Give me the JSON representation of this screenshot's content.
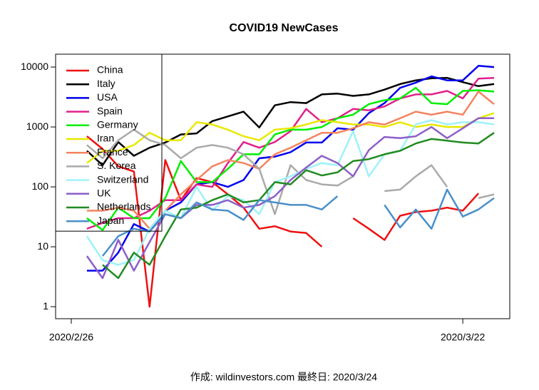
{
  "chart_data": {
    "type": "line",
    "title": "COVID19 NewCases",
    "footer": "作成: wildinvestors.com 最終日: 2020/3/24",
    "log_scale": true,
    "legend": "top-left",
    "xlim": [
      "2020/2/25",
      "2020/3/25"
    ],
    "xticks": [
      "2020/2/26",
      "2020/3/22"
    ],
    "ylim": [
      0.63,
      16400
    ],
    "yticks": [
      1,
      10,
      100,
      1000,
      10000
    ],
    "x": [
      "2020/2/27",
      "2020/2/28",
      "2020/2/29",
      "2020/3/1",
      "2020/3/2",
      "2020/3/3",
      "2020/3/4",
      "2020/3/5",
      "2020/3/6",
      "2020/3/7",
      "2020/3/8",
      "2020/3/9",
      "2020/3/10",
      "2020/3/11",
      "2020/3/12",
      "2020/3/13",
      "2020/3/14",
      "2020/3/15",
      "2020/3/16",
      "2020/3/17",
      "2020/3/18",
      "2020/3/19",
      "2020/3/20",
      "2020/3/21",
      "2020/3/22",
      "2020/3/23",
      "2020/3/24"
    ],
    "series": [
      {
        "name": "China",
        "color": "#ee1111",
        "values": [
          700,
          430,
          220,
          180,
          1,
          280,
          60,
          140,
          120,
          75,
          45,
          20,
          22,
          18,
          17,
          10,
          null,
          30,
          20,
          13,
          33,
          38,
          40,
          45,
          40,
          78,
          null
        ]
      },
      {
        "name": "Italy",
        "color": "#000000",
        "values": [
          400,
          230,
          560,
          330,
          450,
          550,
          750,
          780,
          1250,
          1500,
          1800,
          980,
          2300,
          2600,
          2500,
          3500,
          3600,
          3300,
          3500,
          4200,
          5200,
          6000,
          6500,
          6600,
          5600,
          4800,
          5200
        ]
      },
      {
        "name": "USA",
        "color": "#0000ee",
        "values": [
          4,
          4,
          8,
          24,
          18,
          40,
          55,
          110,
          120,
          100,
          130,
          300,
          320,
          380,
          550,
          550,
          950,
          900,
          1700,
          2500,
          4500,
          5500,
          7000,
          6000,
          6000,
          10500,
          10000
        ]
      },
      {
        "name": "Spain",
        "color": "#e0208c",
        "values": [
          20,
          25,
          30,
          30,
          40,
          60,
          60,
          110,
          100,
          250,
          560,
          450,
          560,
          850,
          2000,
          1200,
          1400,
          2000,
          1900,
          2200,
          3000,
          3500,
          3500,
          4000,
          3000,
          6400,
          6600
        ]
      },
      {
        "name": "Germany",
        "color": "#00ee00",
        "values": [
          30,
          19,
          45,
          30,
          30,
          65,
          270,
          120,
          120,
          200,
          350,
          350,
          750,
          900,
          900,
          1000,
          1400,
          1600,
          2400,
          2800,
          3000,
          4500,
          2500,
          2400,
          4000,
          4100,
          3900
        ]
      },
      {
        "name": "Iran",
        "color": "#e8e800",
        "values": [
          250,
          400,
          400,
          500,
          800,
          600,
          600,
          1200,
          1100,
          900,
          700,
          600,
          900,
          950,
          1100,
          1300,
          1200,
          1100,
          1100,
          1000,
          1200,
          1000,
          1100,
          1000,
          1000,
          1400,
          1700
        ]
      },
      {
        "name": "France",
        "color": "#f4845f",
        "values": [
          40,
          40,
          45,
          40,
          20,
          40,
          75,
          130,
          220,
          280,
          250,
          200,
          350,
          450,
          600,
          800,
          800,
          950,
          1200,
          1100,
          1400,
          1800,
          1600,
          1800,
          1600,
          3900,
          2400
        ]
      },
      {
        "name": "S. Korea",
        "color": "#aaaaaa",
        "values": [
          500,
          300,
          600,
          900,
          600,
          500,
          300,
          450,
          500,
          450,
          350,
          200,
          35,
          230,
          130,
          110,
          105,
          150,
          null,
          85,
          90,
          150,
          230,
          100,
          null,
          65,
          75
        ]
      },
      {
        "name": "Switzerland",
        "color": "#9ef2f8",
        "values": [
          15,
          6,
          5,
          6,
          20,
          40,
          30,
          100,
          40,
          70,
          60,
          35,
          120,
          150,
          200,
          250,
          230,
          850,
          150,
          350,
          400,
          1100,
          1300,
          1100,
          1200,
          1200,
          1100
        ]
      },
      {
        "name": "UK",
        "color": "#8e5ec9",
        "values": [
          7,
          3,
          13,
          4,
          12,
          35,
          30,
          50,
          50,
          60,
          45,
          50,
          70,
          130,
          210,
          330,
          250,
          150,
          410,
          680,
          650,
          700,
          1000,
          650,
          950,
          1400,
          1400
        ]
      },
      {
        "name": "Netherlands",
        "color": "#228b22",
        "values": [
          null,
          5,
          3,
          8,
          5,
          15,
          42,
          45,
          60,
          75,
          55,
          60,
          120,
          110,
          190,
          155,
          175,
          270,
          290,
          350,
          400,
          530,
          630,
          590,
          550,
          530,
          800
        ]
      },
      {
        "name": "Japan",
        "color": "#4a90c9",
        "values": [
          null,
          7,
          15,
          20,
          18,
          35,
          30,
          55,
          42,
          40,
          28,
          60,
          55,
          50,
          50,
          42,
          70,
          null,
          null,
          50,
          21,
          42,
          20,
          90,
          32,
          42,
          65
        ]
      }
    ]
  }
}
